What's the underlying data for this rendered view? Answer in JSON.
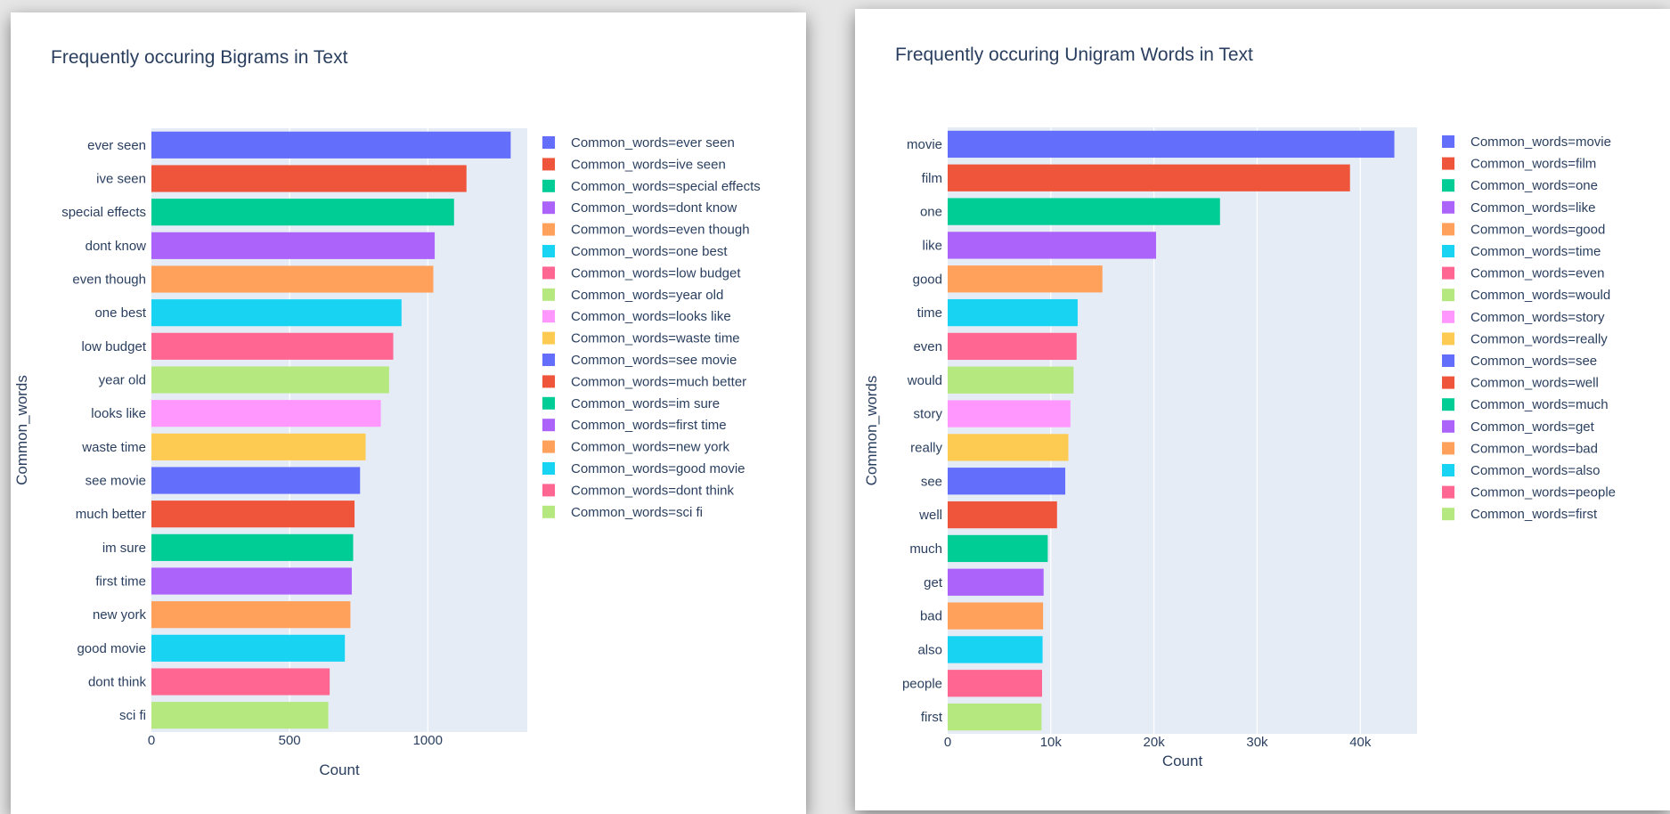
{
  "chart_data": [
    {
      "type": "bar",
      "orientation": "horizontal",
      "title": "Frequently occuring Bigrams in Text",
      "xlabel": "Count",
      "ylabel": "Common_words",
      "xlim": [
        0,
        1360
      ],
      "xticks": [
        0,
        500,
        1000
      ],
      "xtick_labels": [
        "0",
        "500",
        "1000"
      ],
      "grid": true,
      "legend_position": "right",
      "categories": [
        "ever seen",
        "ive seen",
        "special effects",
        "dont know",
        "even though",
        "one best",
        "low budget",
        "year old",
        "looks like",
        "waste time",
        "see movie",
        "much better",
        "im sure",
        "first time",
        "new york",
        "good movie",
        "dont think",
        "sci fi"
      ],
      "values": [
        1300,
        1140,
        1095,
        1025,
        1020,
        905,
        875,
        860,
        830,
        775,
        755,
        735,
        730,
        725,
        720,
        700,
        645,
        640
      ],
      "legend": [
        "Common_words=ever seen",
        "Common_words=ive seen",
        "Common_words=special effects",
        "Common_words=dont know",
        "Common_words=even though",
        "Common_words=one best",
        "Common_words=low budget",
        "Common_words=year old",
        "Common_words=looks like",
        "Common_words=waste time",
        "Common_words=see movie",
        "Common_words=much better",
        "Common_words=im sure",
        "Common_words=first time",
        "Common_words=new york",
        "Common_words=good movie",
        "Common_words=dont think",
        "Common_words=sci fi"
      ]
    },
    {
      "type": "bar",
      "orientation": "horizontal",
      "title": "Frequently occuring Unigram Words in Text",
      "xlabel": "Count",
      "ylabel": "Common_words",
      "xlim": [
        0,
        45500
      ],
      "xticks": [
        0,
        10000,
        20000,
        30000,
        40000
      ],
      "xtick_labels": [
        "0",
        "10k",
        "20k",
        "30k",
        "40k"
      ],
      "grid": true,
      "legend_position": "right",
      "categories": [
        "movie",
        "film",
        "one",
        "like",
        "good",
        "time",
        "even",
        "would",
        "story",
        "really",
        "see",
        "well",
        "much",
        "get",
        "bad",
        "also",
        "people",
        "first"
      ],
      "values": [
        43300,
        39000,
        26400,
        20200,
        15000,
        12600,
        12500,
        12200,
        11900,
        11700,
        11400,
        10600,
        9700,
        9300,
        9250,
        9200,
        9150,
        9100
      ],
      "legend": [
        "Common_words=movie",
        "Common_words=film",
        "Common_words=one",
        "Common_words=like",
        "Common_words=good",
        "Common_words=time",
        "Common_words=even",
        "Common_words=would",
        "Common_words=story",
        "Common_words=really",
        "Common_words=see",
        "Common_words=well",
        "Common_words=much",
        "Common_words=get",
        "Common_words=bad",
        "Common_words=also",
        "Common_words=people",
        "Common_words=first"
      ]
    }
  ],
  "colors": [
    "#636efa",
    "#ef553b",
    "#00cc96",
    "#ab63fa",
    "#ffa15a",
    "#19d3f3",
    "#ff6692",
    "#b6e880",
    "#ff97ff",
    "#fecb52"
  ]
}
